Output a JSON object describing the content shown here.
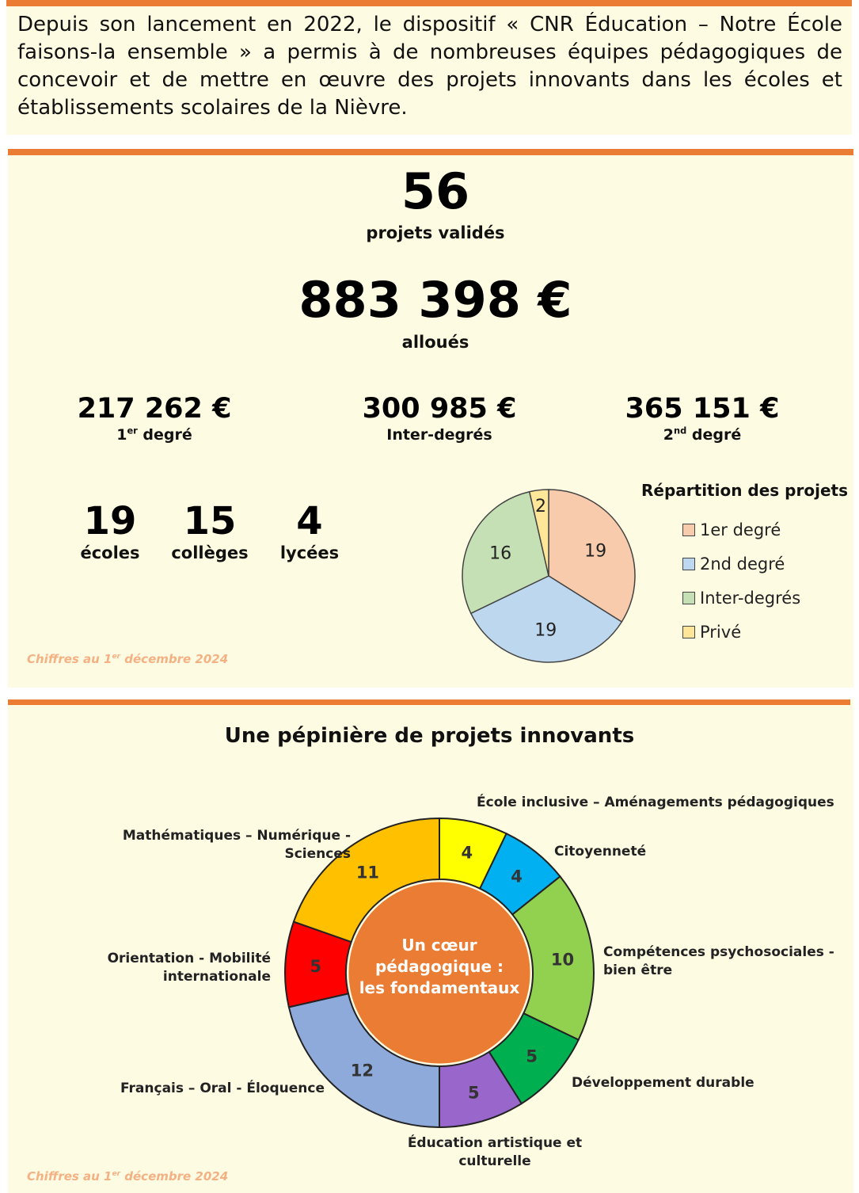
{
  "intro": {
    "text": "Depuis son lancement en 2022, le dispositif « CNR Éducation – Notre École faisons-la ensemble » a permis à de nombreuses équipes pédagogiques de concevoir et de mettre en œuvre des projets innovants dans les écoles et établissements scolaires de la Nièvre."
  },
  "stats": {
    "projects_count": "56",
    "projects_label": "projets validés",
    "amount_total": "883 398 €",
    "amount_label": "alloués",
    "first_degree_amount": "217 262 €",
    "first_degree_label_main": "1",
    "first_degree_label_sup": "er",
    "first_degree_label_rest": " degré",
    "inter_degree_amount": "300 985 €",
    "inter_degree_label": "Inter-degrés",
    "second_degree_amount": "365 151 €",
    "second_degree_label_main": "2",
    "second_degree_label_sup": "nd",
    "second_degree_label_rest": " degré",
    "ecoles_count": "19",
    "ecoles_label": "écoles",
    "colleges_count": "15",
    "colleges_label": "collèges",
    "lycees_count": "4",
    "lycees_label": "lycées",
    "footnote_main": "Chiffres au 1",
    "footnote_sup": "er",
    "footnote_rest": " décembre 2024"
  },
  "pepiniere": {
    "title": "Une pépinière de projets innovants",
    "center_text": [
      "Un cœur",
      "pédagogique :",
      "les fondamentaux"
    ],
    "footnote_main": "Chiffres au 1",
    "footnote_sup": "er",
    "footnote_rest": " décembre 2024"
  },
  "colors": {
    "accent": "#ea7c33",
    "panel": "#fefbe3",
    "footnote": "#f4b183"
  },
  "chart_data": [
    {
      "type": "pie",
      "title": "Répartition des projets",
      "categories": [
        "1er degré",
        "2nd degré",
        "Inter-degrés",
        "Privé"
      ],
      "values": [
        19,
        19,
        16,
        2
      ],
      "colors": [
        "#f8cbad",
        "#bdd7ee",
        "#c5e0b4",
        "#ffe699"
      ],
      "legend": "right"
    },
    {
      "type": "pie",
      "title": "",
      "categories": [
        "École inclusive – Aménagements pédagogiques",
        "Citoyenneté",
        "Compétences psychosociales - bien être",
        "Développement durable",
        "Éducation artistique et culturelle",
        "Français – Oral - Éloquence",
        "Orientation - Mobilité internationale",
        "Mathématiques – Numérique - Sciences"
      ],
      "values": [
        4,
        4,
        10,
        5,
        5,
        12,
        5,
        11
      ],
      "colors": [
        "#ffff00",
        "#00b0f0",
        "#92d050",
        "#00b050",
        "#9966cc",
        "#8eaadb",
        "#ff0000",
        "#ffc000"
      ],
      "center_label": "Un cœur pédagogique : les fondamentaux"
    }
  ]
}
